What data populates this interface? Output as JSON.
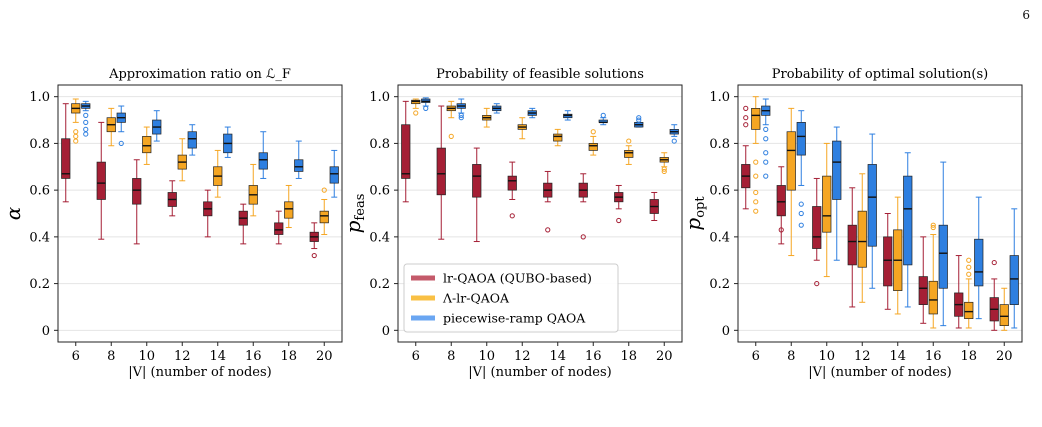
{
  "page_number": "6",
  "colors": {
    "lr": "#a51f35",
    "lambda": "#f5a623",
    "ramp": "#2e7fe0"
  },
  "legend": [
    {
      "label": "lr-QAOA (QUBO-based)",
      "color": "#c45a6a"
    },
    {
      "label": "Λ-lr-QAOA",
      "color": "#f9c044"
    },
    {
      "label": "piecewise-ramp QAOA",
      "color": "#6aa6f2"
    }
  ],
  "chart_data": [
    {
      "type": "box",
      "title": "Approximation ratio on ℒ_F",
      "xlabel": "|V| (number of nodes)",
      "ylabel": "α",
      "ylabel_sub": "",
      "categories": [
        "6",
        "8",
        "10",
        "12",
        "14",
        "16",
        "18",
        "20"
      ],
      "ylim": [
        -0.05,
        1.05
      ],
      "yticks": [
        "0",
        "0.2",
        "0.4",
        "0.6",
        "0.8",
        "1.0"
      ],
      "grid": "horizontal",
      "series": [
        {
          "name": "lr-QAOA (QUBO-based)",
          "boxes": [
            {
              "wlo": 0.55,
              "q1": 0.65,
              "med": 0.67,
              "q3": 0.82,
              "whi": 0.97,
              "fl": []
            },
            {
              "wlo": 0.39,
              "q1": 0.56,
              "med": 0.63,
              "q3": 0.72,
              "whi": 0.89,
              "fl": []
            },
            {
              "wlo": 0.37,
              "q1": 0.54,
              "med": 0.6,
              "q3": 0.65,
              "whi": 0.73,
              "fl": []
            },
            {
              "wlo": 0.49,
              "q1": 0.53,
              "med": 0.56,
              "q3": 0.59,
              "whi": 0.64,
              "fl": []
            },
            {
              "wlo": 0.4,
              "q1": 0.49,
              "med": 0.52,
              "q3": 0.55,
              "whi": 0.6,
              "fl": []
            },
            {
              "wlo": 0.37,
              "q1": 0.45,
              "med": 0.48,
              "q3": 0.51,
              "whi": 0.54,
              "fl": []
            },
            {
              "wlo": 0.37,
              "q1": 0.41,
              "med": 0.43,
              "q3": 0.46,
              "whi": 0.51,
              "fl": []
            },
            {
              "wlo": 0.35,
              "q1": 0.38,
              "med": 0.4,
              "q3": 0.42,
              "whi": 0.46,
              "fl": [
                0.32
              ]
            }
          ]
        },
        {
          "name": "Λ-lr-QAOA",
          "boxes": [
            {
              "wlo": 0.89,
              "q1": 0.93,
              "med": 0.95,
              "q3": 0.97,
              "whi": 0.99,
              "fl": [
                0.85,
                0.83,
                0.81
              ]
            },
            {
              "wlo": 0.79,
              "q1": 0.85,
              "med": 0.88,
              "q3": 0.91,
              "whi": 0.95,
              "fl": []
            },
            {
              "wlo": 0.71,
              "q1": 0.76,
              "med": 0.79,
              "q3": 0.83,
              "whi": 0.87,
              "fl": []
            },
            {
              "wlo": 0.64,
              "q1": 0.69,
              "med": 0.72,
              "q3": 0.75,
              "whi": 0.82,
              "fl": []
            },
            {
              "wlo": 0.57,
              "q1": 0.62,
              "med": 0.66,
              "q3": 0.7,
              "whi": 0.77,
              "fl": []
            },
            {
              "wlo": 0.49,
              "q1": 0.54,
              "med": 0.58,
              "q3": 0.62,
              "whi": 0.71,
              "fl": []
            },
            {
              "wlo": 0.44,
              "q1": 0.48,
              "med": 0.52,
              "q3": 0.55,
              "whi": 0.62,
              "fl": []
            },
            {
              "wlo": 0.41,
              "q1": 0.46,
              "med": 0.49,
              "q3": 0.51,
              "whi": 0.56,
              "fl": [
                0.6
              ]
            }
          ]
        },
        {
          "name": "piecewise-ramp QAOA",
          "boxes": [
            {
              "wlo": 0.94,
              "q1": 0.95,
              "med": 0.96,
              "q3": 0.97,
              "whi": 0.98,
              "fl": [
                0.92,
                0.89,
                0.86,
                0.84
              ]
            },
            {
              "wlo": 0.85,
              "q1": 0.89,
              "med": 0.91,
              "q3": 0.93,
              "whi": 0.96,
              "fl": [
                0.8
              ]
            },
            {
              "wlo": 0.81,
              "q1": 0.84,
              "med": 0.87,
              "q3": 0.9,
              "whi": 0.94,
              "fl": []
            },
            {
              "wlo": 0.75,
              "q1": 0.78,
              "med": 0.82,
              "q3": 0.85,
              "whi": 0.88,
              "fl": []
            },
            {
              "wlo": 0.74,
              "q1": 0.76,
              "med": 0.8,
              "q3": 0.84,
              "whi": 0.87,
              "fl": []
            },
            {
              "wlo": 0.65,
              "q1": 0.69,
              "med": 0.73,
              "q3": 0.76,
              "whi": 0.85,
              "fl": []
            },
            {
              "wlo": 0.65,
              "q1": 0.68,
              "med": 0.7,
              "q3": 0.73,
              "whi": 0.81,
              "fl": []
            },
            {
              "wlo": 0.57,
              "q1": 0.63,
              "med": 0.67,
              "q3": 0.7,
              "whi": 0.77,
              "fl": []
            }
          ]
        }
      ]
    },
    {
      "type": "box",
      "title": "Probability of feasible solutions",
      "xlabel": "|V| (number of nodes)",
      "ylabel": "p",
      "ylabel_sub": "feas",
      "categories": [
        "6",
        "8",
        "10",
        "12",
        "14",
        "16",
        "18",
        "20"
      ],
      "ylim": [
        -0.05,
        1.05
      ],
      "yticks": [
        "0",
        "0.2",
        "0.4",
        "0.6",
        "0.8",
        "1.0"
      ],
      "grid": "horizontal",
      "legend_position": "lower-left",
      "series": [
        {
          "name": "lr-QAOA (QUBO-based)",
          "boxes": [
            {
              "wlo": 0.55,
              "q1": 0.65,
              "med": 0.67,
              "q3": 0.88,
              "whi": 0.98,
              "fl": []
            },
            {
              "wlo": 0.39,
              "q1": 0.58,
              "med": 0.67,
              "q3": 0.78,
              "whi": 0.96,
              "fl": []
            },
            {
              "wlo": 0.38,
              "q1": 0.57,
              "med": 0.66,
              "q3": 0.71,
              "whi": 0.78,
              "fl": []
            },
            {
              "wlo": 0.56,
              "q1": 0.6,
              "med": 0.64,
              "q3": 0.66,
              "whi": 0.72,
              "fl": [
                0.49
              ]
            },
            {
              "wlo": 0.55,
              "q1": 0.57,
              "med": 0.6,
              "q3": 0.63,
              "whi": 0.68,
              "fl": [
                0.43
              ]
            },
            {
              "wlo": 0.55,
              "q1": 0.57,
              "med": 0.6,
              "q3": 0.63,
              "whi": 0.67,
              "fl": [
                0.4
              ]
            },
            {
              "wlo": 0.52,
              "q1": 0.55,
              "med": 0.57,
              "q3": 0.59,
              "whi": 0.62,
              "fl": [
                0.47
              ]
            },
            {
              "wlo": 0.47,
              "q1": 0.5,
              "med": 0.53,
              "q3": 0.56,
              "whi": 0.59,
              "fl": []
            }
          ]
        },
        {
          "name": "Λ-lr-QAOA",
          "boxes": [
            {
              "wlo": 0.95,
              "q1": 0.97,
              "med": 0.98,
              "q3": 0.985,
              "whi": 0.99,
              "fl": [
                0.93
              ]
            },
            {
              "wlo": 0.91,
              "q1": 0.94,
              "med": 0.95,
              "q3": 0.96,
              "whi": 0.98,
              "fl": [
                0.83
              ]
            },
            {
              "wlo": 0.87,
              "q1": 0.9,
              "med": 0.91,
              "q3": 0.92,
              "whi": 0.95,
              "fl": []
            },
            {
              "wlo": 0.82,
              "q1": 0.86,
              "med": 0.87,
              "q3": 0.88,
              "whi": 0.91,
              "fl": []
            },
            {
              "wlo": 0.79,
              "q1": 0.81,
              "med": 0.83,
              "q3": 0.84,
              "whi": 0.86,
              "fl": []
            },
            {
              "wlo": 0.75,
              "q1": 0.77,
              "med": 0.79,
              "q3": 0.8,
              "whi": 0.83,
              "fl": [
                0.85
              ]
            },
            {
              "wlo": 0.71,
              "q1": 0.74,
              "med": 0.76,
              "q3": 0.77,
              "whi": 0.79,
              "fl": [
                0.81
              ]
            },
            {
              "wlo": 0.7,
              "q1": 0.72,
              "med": 0.73,
              "q3": 0.74,
              "whi": 0.76,
              "fl": [
                0.69,
                0.68
              ]
            }
          ]
        },
        {
          "name": "piecewise-ramp QAOA",
          "boxes": [
            {
              "wlo": 0.96,
              "q1": 0.975,
              "med": 0.98,
              "q3": 0.99,
              "whi": 0.995,
              "fl": [
                0.95
              ]
            },
            {
              "wlo": 0.93,
              "q1": 0.95,
              "med": 0.96,
              "q3": 0.97,
              "whi": 0.99,
              "fl": [
                0.92,
                0.91
              ]
            },
            {
              "wlo": 0.93,
              "q1": 0.94,
              "med": 0.95,
              "q3": 0.96,
              "whi": 0.97,
              "fl": []
            },
            {
              "wlo": 0.91,
              "q1": 0.92,
              "med": 0.93,
              "q3": 0.94,
              "whi": 0.95,
              "fl": []
            },
            {
              "wlo": 0.9,
              "q1": 0.91,
              "med": 0.92,
              "q3": 0.925,
              "whi": 0.94,
              "fl": []
            },
            {
              "wlo": 0.88,
              "q1": 0.89,
              "med": 0.89,
              "q3": 0.9,
              "whi": 0.91,
              "fl": [
                0.92
              ]
            },
            {
              "wlo": 0.87,
              "q1": 0.87,
              "med": 0.88,
              "q3": 0.89,
              "whi": 0.89,
              "fl": [
                0.9,
                0.91
              ]
            },
            {
              "wlo": 0.83,
              "q1": 0.84,
              "med": 0.85,
              "q3": 0.86,
              "whi": 0.88,
              "fl": [
                0.81
              ]
            }
          ]
        }
      ]
    },
    {
      "type": "box",
      "title": "Probability of optimal solution(s)",
      "xlabel": "|V| (number of nodes)",
      "ylabel": "p",
      "ylabel_sub": "opt",
      "categories": [
        "6",
        "8",
        "10",
        "12",
        "14",
        "16",
        "18",
        "20"
      ],
      "ylim": [
        -0.05,
        1.05
      ],
      "yticks": [
        "0",
        "0.2",
        "0.4",
        "0.6",
        "0.8",
        "1.0"
      ],
      "grid": "horizontal",
      "series": [
        {
          "name": "lr-QAOA (QUBO-based)",
          "boxes": [
            {
              "wlo": 0.52,
              "q1": 0.61,
              "med": 0.66,
              "q3": 0.71,
              "whi": 0.79,
              "fl": [
                0.95,
                0.91,
                0.88
              ]
            },
            {
              "wlo": 0.37,
              "q1": 0.49,
              "med": 0.55,
              "q3": 0.62,
              "whi": 0.7,
              "fl": [
                0.43
              ]
            },
            {
              "wlo": 0.3,
              "q1": 0.35,
              "med": 0.4,
              "q3": 0.53,
              "whi": 0.65,
              "fl": [
                0.2
              ]
            },
            {
              "wlo": 0.1,
              "q1": 0.28,
              "med": 0.38,
              "q3": 0.45,
              "whi": 0.61,
              "fl": []
            },
            {
              "wlo": 0.09,
              "q1": 0.19,
              "med": 0.3,
              "q3": 0.4,
              "whi": 0.5,
              "fl": []
            },
            {
              "wlo": 0.03,
              "q1": 0.11,
              "med": 0.18,
              "q3": 0.23,
              "whi": 0.4,
              "fl": []
            },
            {
              "wlo": 0.01,
              "q1": 0.06,
              "med": 0.11,
              "q3": 0.16,
              "whi": 0.32,
              "fl": []
            },
            {
              "wlo": 0.0,
              "q1": 0.04,
              "med": 0.09,
              "q3": 0.14,
              "whi": 0.22,
              "fl": [
                0.29
              ]
            }
          ]
        },
        {
          "name": "Λ-lr-QAOA",
          "boxes": [
            {
              "wlo": 0.8,
              "q1": 0.86,
              "med": 0.92,
              "q3": 0.95,
              "whi": 1.0,
              "fl": [
                0.72,
                0.66,
                0.59,
                0.55,
                0.51
              ]
            },
            {
              "wlo": 0.32,
              "q1": 0.6,
              "med": 0.77,
              "q3": 0.85,
              "whi": 0.95,
              "fl": []
            },
            {
              "wlo": 0.23,
              "q1": 0.42,
              "med": 0.49,
              "q3": 0.66,
              "whi": 0.8,
              "fl": []
            },
            {
              "wlo": 0.12,
              "q1": 0.27,
              "med": 0.38,
              "q3": 0.51,
              "whi": 0.67,
              "fl": []
            },
            {
              "wlo": 0.07,
              "q1": 0.17,
              "med": 0.3,
              "q3": 0.43,
              "whi": 0.57,
              "fl": []
            },
            {
              "wlo": 0.01,
              "q1": 0.07,
              "med": 0.13,
              "q3": 0.21,
              "whi": 0.41,
              "fl": [
                0.45,
                0.44
              ]
            },
            {
              "wlo": 0.01,
              "q1": 0.05,
              "med": 0.08,
              "q3": 0.12,
              "whi": 0.22,
              "fl": [
                0.3,
                0.27,
                0.24
              ]
            },
            {
              "wlo": 0.0,
              "q1": 0.02,
              "med": 0.06,
              "q3": 0.11,
              "whi": 0.18,
              "fl": []
            }
          ]
        },
        {
          "name": "piecewise-ramp QAOA",
          "boxes": [
            {
              "wlo": 0.88,
              "q1": 0.92,
              "med": 0.94,
              "q3": 0.96,
              "whi": 0.99,
              "fl": [
                0.86,
                0.82,
                0.76,
                0.72,
                0.66
              ]
            },
            {
              "wlo": 0.62,
              "q1": 0.75,
              "med": 0.83,
              "q3": 0.89,
              "whi": 0.94,
              "fl": [
                0.54,
                0.5,
                0.45
              ]
            },
            {
              "wlo": 0.3,
              "q1": 0.56,
              "med": 0.72,
              "q3": 0.81,
              "whi": 0.87,
              "fl": []
            },
            {
              "wlo": 0.18,
              "q1": 0.36,
              "med": 0.57,
              "q3": 0.71,
              "whi": 0.84,
              "fl": []
            },
            {
              "wlo": 0.1,
              "q1": 0.28,
              "med": 0.52,
              "q3": 0.66,
              "whi": 0.76,
              "fl": []
            },
            {
              "wlo": 0.02,
              "q1": 0.18,
              "med": 0.33,
              "q3": 0.45,
              "whi": 0.72,
              "fl": []
            },
            {
              "wlo": 0.05,
              "q1": 0.19,
              "med": 0.25,
              "q3": 0.39,
              "whi": 0.57,
              "fl": []
            },
            {
              "wlo": 0.01,
              "q1": 0.11,
              "med": 0.22,
              "q3": 0.32,
              "whi": 0.52,
              "fl": []
            }
          ]
        }
      ]
    }
  ]
}
